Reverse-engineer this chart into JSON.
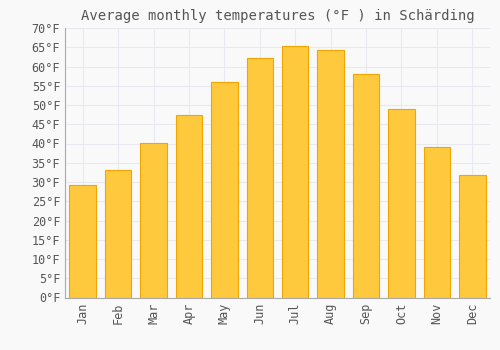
{
  "title": "Average monthly temperatures (°F ) in Schärding",
  "months": [
    "Jan",
    "Feb",
    "Mar",
    "Apr",
    "May",
    "Jun",
    "Jul",
    "Aug",
    "Sep",
    "Oct",
    "Nov",
    "Dec"
  ],
  "values": [
    29.3,
    33.1,
    40.1,
    47.3,
    56.1,
    62.2,
    65.3,
    64.2,
    58.1,
    49.0,
    39.2,
    31.8
  ],
  "bar_color_center": "#FFC93E",
  "bar_color_edge": "#F0A500",
  "background_color": "#f9f9f9",
  "grid_color": "#e8e8f0",
  "text_color": "#555555",
  "ylim": [
    0,
    70
  ],
  "yticks": [
    0,
    5,
    10,
    15,
    20,
    25,
    30,
    35,
    40,
    45,
    50,
    55,
    60,
    65,
    70
  ],
  "title_fontsize": 10,
  "tick_fontsize": 8.5,
  "font_family": "monospace"
}
